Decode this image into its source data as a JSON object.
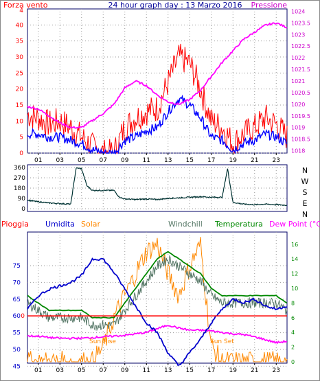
{
  "header": {
    "title": "24 hour graph day : 13 Marzo 2016",
    "left_label": "Forza vento",
    "right_label": "Pressione"
  },
  "colors": {
    "wind": "#ff0000",
    "wind_avg": "#0000ff",
    "pressure": "#ff00ff",
    "direction": "#003333",
    "rain": "#ff0000",
    "humidity": "#0000cc",
    "solar": "#ff8800",
    "windchill": "#557766",
    "temperature": "#008800",
    "dewpoint": "#ff00ff",
    "frame": "#000066"
  },
  "legend": {
    "rain": "Pioggia",
    "humidity": "Umidita",
    "solar": "Solar",
    "windchill": "Windchill",
    "temperature": "Temperatura",
    "dewpoint": "Dew Point (°C)"
  },
  "annotations": {
    "sunrise": "Sun Rise",
    "sunset": "Sun Set"
  },
  "chart_data": [
    {
      "type": "line",
      "xlabels": [
        "01",
        "03",
        "05",
        "07",
        "09",
        "11",
        "13",
        "15",
        "17",
        "19",
        "21",
        "23"
      ],
      "y_left_ticks": [
        0,
        5,
        10,
        15,
        20,
        25,
        30,
        35,
        40
      ],
      "y_left_top_label": "4",
      "y_right_ticks": [
        "1018",
        "1018.5",
        "1019",
        "1019.5",
        "1020",
        "1020.5",
        "1021",
        "1021.5",
        "1022",
        "1022.5",
        "1023",
        "1023.5",
        "1024"
      ],
      "x": [
        0,
        1,
        2,
        3,
        4,
        5,
        6,
        7,
        8,
        9,
        10,
        11,
        12,
        13,
        14,
        15,
        16,
        17,
        18,
        19,
        20,
        21,
        22,
        23,
        24
      ],
      "series": [
        {
          "key": "wind",
          "values": [
            12,
            11,
            9,
            10,
            8,
            5,
            2,
            0,
            0,
            8,
            11,
            13,
            14,
            22,
            30,
            28,
            20,
            10,
            8,
            3,
            6,
            8,
            11,
            9,
            5
          ]
        },
        {
          "key": "wind_avg",
          "values": [
            6,
            6,
            5,
            5,
            4,
            3,
            1,
            0,
            0,
            4,
            5,
            7,
            8,
            13,
            17,
            15,
            11,
            5,
            4,
            1,
            3,
            4,
            6,
            5,
            3
          ]
        },
        {
          "key": "pressure",
          "values": [
            1019.9,
            1019.8,
            1019.5,
            1019.2,
            1019.0,
            1019.0,
            1019.3,
            1019.6,
            1020.0,
            1020.7,
            1021.0,
            1020.8,
            1020.4,
            1020.1,
            1020.0,
            1020.2,
            1020.6,
            1021.2,
            1021.8,
            1022.3,
            1022.8,
            1023.1,
            1023.4,
            1023.5,
            1023.3
          ]
        }
      ]
    },
    {
      "type": "line",
      "label_sequence": [
        "N",
        "W",
        "S",
        "E",
        "N"
      ],
      "y_ticks": [
        0,
        90,
        180,
        270,
        360
      ],
      "x": [
        0,
        1,
        2,
        3,
        4,
        4.5,
        5,
        5.5,
        6,
        7,
        8,
        8.5,
        9,
        10,
        11,
        12,
        13,
        14,
        15,
        16,
        17,
        18,
        18.5,
        19,
        20,
        21,
        22,
        23,
        24
      ],
      "series": [
        {
          "key": "direction",
          "values": [
            75,
            60,
            50,
            45,
            40,
            355,
            350,
            200,
            160,
            160,
            160,
            100,
            85,
            80,
            85,
            80,
            90,
            95,
            100,
            105,
            100,
            100,
            350,
            55,
            40,
            35,
            40,
            35,
            30
          ]
        }
      ]
    },
    {
      "type": "line",
      "y_left_ticks": [
        45,
        50,
        55,
        60,
        65,
        70,
        75
      ],
      "y_right_ticks": [
        0,
        2,
        4,
        6,
        8,
        10,
        12,
        14,
        16
      ],
      "rain_baseline": 60,
      "x": [
        0,
        1,
        2,
        3,
        4,
        5,
        6,
        7,
        8,
        9,
        10,
        11,
        12,
        13,
        14,
        15,
        16,
        17,
        18,
        19,
        20,
        21,
        22,
        23,
        24
      ],
      "series": [
        {
          "key": "humidity",
          "values": [
            62,
            66,
            68,
            69,
            70,
            72,
            77,
            77,
            73,
            68,
            63,
            58,
            55,
            49,
            45,
            49,
            53,
            58,
            62,
            65,
            64,
            65,
            63,
            62,
            63
          ]
        },
        {
          "key": "temperature",
          "values": [
            9,
            8,
            7,
            7,
            7,
            7,
            6,
            6,
            6,
            8,
            10,
            12,
            14,
            15,
            14,
            13,
            12,
            10,
            9,
            9,
            9,
            9,
            9,
            9,
            8
          ]
        },
        {
          "key": "windchill",
          "values": [
            8,
            7,
            6,
            6,
            6,
            6,
            5,
            5,
            5,
            7,
            9,
            11,
            13,
            14,
            13,
            12,
            11,
            9,
            8,
            8,
            8,
            8,
            8,
            8,
            7
          ]
        },
        {
          "key": "dewpoint",
          "values": [
            3.5,
            3.5,
            3.3,
            3.2,
            3.2,
            3.2,
            3.3,
            3.4,
            3.5,
            3.6,
            3.8,
            4.0,
            4.5,
            5.0,
            4.6,
            4.3,
            4.3,
            4.2,
            4.0,
            3.8,
            3.7,
            3.4,
            3.0,
            2.6,
            2.8
          ]
        },
        {
          "key": "solar",
          "values": [
            0,
            0,
            0,
            0,
            0,
            0,
            0,
            2,
            6,
            9,
            12,
            15,
            16,
            12,
            9,
            13,
            16,
            2,
            0,
            0,
            0,
            0,
            0,
            0,
            0
          ]
        }
      ]
    }
  ]
}
